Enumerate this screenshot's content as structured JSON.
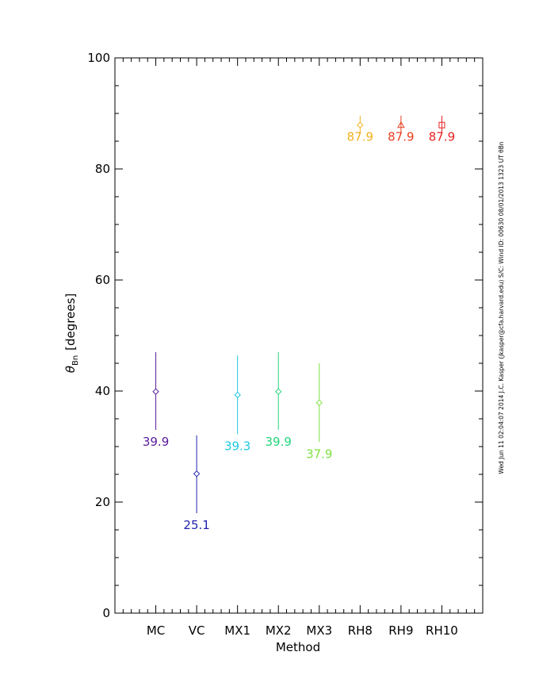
{
  "chart_data": {
    "type": "scatter",
    "xlabel": "Method",
    "ylabel_main": "θ",
    "ylabel_sub": "Bn",
    "ylabel_unit": "[degrees]",
    "ylim": [
      0,
      100
    ],
    "y_ticks": [
      0,
      20,
      40,
      60,
      80,
      100
    ],
    "grid": false,
    "categories": [
      "MC",
      "VC",
      "MX1",
      "MX2",
      "MX3",
      "RH8",
      "RH9",
      "RH10"
    ],
    "points": [
      {
        "method": "MC",
        "value": 39.9,
        "err_low": 33.0,
        "err_high": 47.0,
        "label": "39.9",
        "marker": "diamond",
        "color": "#5a1a9a"
      },
      {
        "method": "VC",
        "value": 25.1,
        "err_low": 18.0,
        "err_high": 32.0,
        "label": "25.1",
        "marker": "diamond",
        "color": "#2222b0"
      },
      {
        "method": "MX1",
        "value": 39.3,
        "err_low": 32.2,
        "err_high": 46.4,
        "label": "39.3",
        "marker": "diamond",
        "color": "#1ec8e0"
      },
      {
        "method": "MX2",
        "value": 39.9,
        "err_low": 33.0,
        "err_high": 47.0,
        "label": "39.9",
        "marker": "diamond",
        "color": "#22d67a"
      },
      {
        "method": "MX3",
        "value": 37.9,
        "err_low": 30.8,
        "err_high": 45.0,
        "label": "37.9",
        "marker": "diamond",
        "color": "#7ee040"
      },
      {
        "method": "RH8",
        "value": 87.9,
        "err_low": 86.4,
        "err_high": 89.6,
        "label": "87.9",
        "marker": "diamond",
        "color": "#f2b020"
      },
      {
        "method": "RH9",
        "value": 87.9,
        "err_low": 86.4,
        "err_high": 89.6,
        "label": "87.9",
        "marker": "triangle",
        "color": "#e84020"
      },
      {
        "method": "RH10",
        "value": 87.9,
        "err_low": 86.4,
        "err_high": 89.6,
        "label": "87.9",
        "marker": "square",
        "color": "#e82020"
      }
    ],
    "side_annotation": "Wed Jun 11 02:04:07 2014   J.C. Kasper (jkasper@cfa.harvard.edu)   S/C: Wind  ID: 00630  08/01/2013  1323 UT θBn"
  }
}
